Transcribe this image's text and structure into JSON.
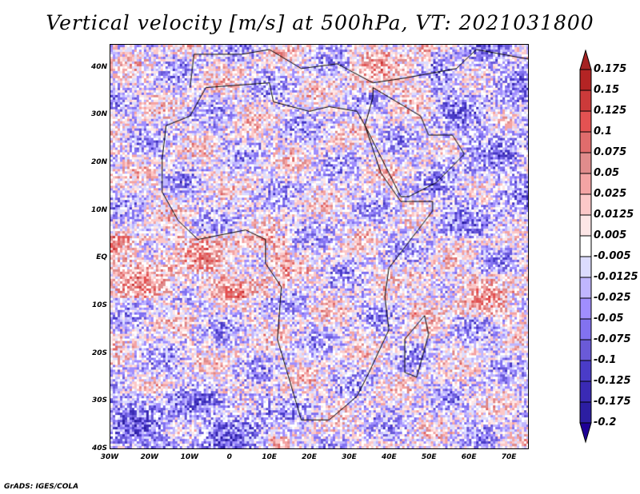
{
  "title": "Vertical velocity [m/s] at 500hPa, VT: 2021031800",
  "footer": "GrADS: IGES/COLA",
  "map": {
    "lon_range": [
      -30,
      75
    ],
    "lat_range": [
      -40,
      45
    ],
    "x_ticks": [
      {
        "lon": -30,
        "label": "30W"
      },
      {
        "lon": -20,
        "label": "20W"
      },
      {
        "lon": -10,
        "label": "10W"
      },
      {
        "lon": 0,
        "label": "0"
      },
      {
        "lon": 10,
        "label": "10E"
      },
      {
        "lon": 20,
        "label": "20E"
      },
      {
        "lon": 30,
        "label": "30E"
      },
      {
        "lon": 40,
        "label": "40E"
      },
      {
        "lon": 50,
        "label": "50E"
      },
      {
        "lon": 60,
        "label": "60E"
      },
      {
        "lon": 70,
        "label": "70E"
      }
    ],
    "y_ticks": [
      {
        "lat": 40,
        "label": "40N"
      },
      {
        "lat": 30,
        "label": "30N"
      },
      {
        "lat": 20,
        "label": "20N"
      },
      {
        "lat": 10,
        "label": "10N"
      },
      {
        "lat": 0,
        "label": "EQ"
      },
      {
        "lat": -10,
        "label": "10S"
      },
      {
        "lat": -20,
        "label": "20S"
      },
      {
        "lat": -30,
        "label": "30S"
      },
      {
        "lat": -40,
        "label": "40S"
      }
    ]
  },
  "colorbar": {
    "labels": [
      "0.175",
      "0.15",
      "0.125",
      "0.1",
      "0.075",
      "0.05",
      "0.025",
      "0.0125",
      "0.005",
      "-0.005",
      "-0.0125",
      "-0.025",
      "-0.05",
      "-0.075",
      "-0.1",
      "-0.125",
      "-0.175",
      "-0.2"
    ],
    "top_arrow_color": "#a52222",
    "bottom_arrow_color": "#1e0096",
    "box_colors": [
      "#b42424",
      "#cc3a3a",
      "#e45252",
      "#e06c6c",
      "#e08c8c",
      "#f4a4a4",
      "#fcc8c8",
      "#fde6e6",
      "#ffffff",
      "#dcdcfe",
      "#c0b6fe",
      "#a08efe",
      "#8272f0",
      "#6a5ad8",
      "#4a3cc8",
      "#3a2ab4",
      "#2c1ea2"
    ]
  }
}
